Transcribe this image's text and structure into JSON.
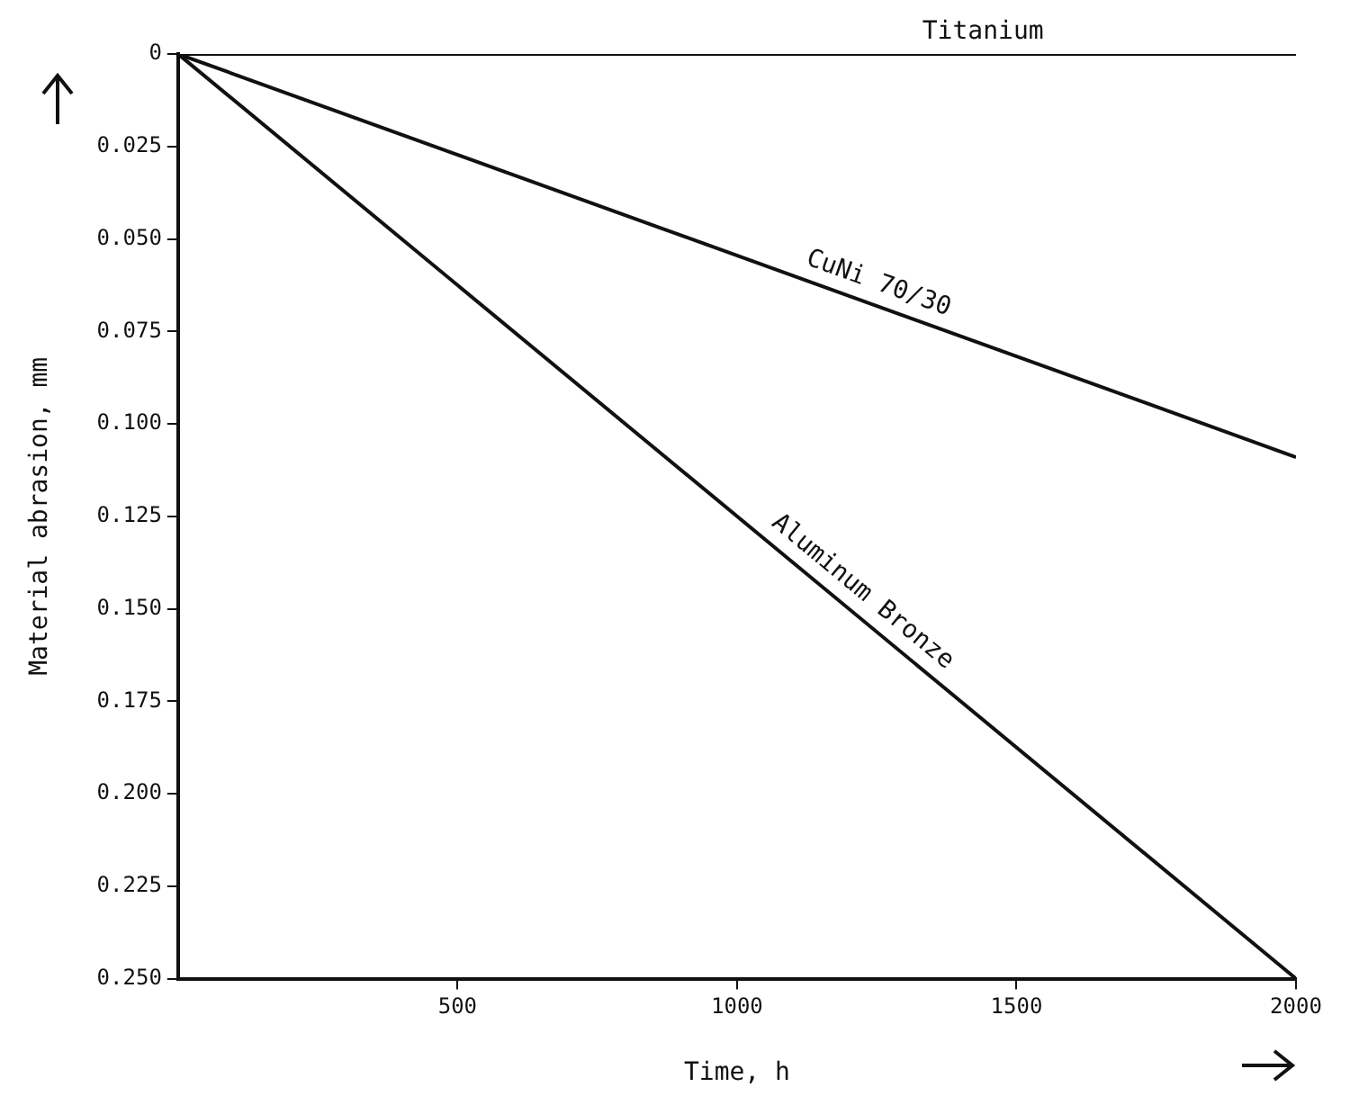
{
  "chart_data": {
    "type": "line",
    "xlabel": "Time, h",
    "ylabel": "Material abrasion, mm",
    "x": [
      0,
      2000
    ],
    "series": [
      {
        "name": "Titanium",
        "color": "#111111",
        "values": [
          0,
          0
        ]
      },
      {
        "name": "CuNi 70/30",
        "color": "#111111",
        "values": [
          0,
          0.109
        ]
      },
      {
        "name": "Aluminum Bronze",
        "color": "#111111",
        "values": [
          0,
          0.25
        ]
      }
    ],
    "xlim": [
      0,
      2000
    ],
    "xticks": [
      500,
      1000,
      1500,
      2000
    ],
    "ylim": [
      0.25,
      0
    ],
    "yticks": [
      0,
      0.025,
      {
        "value": 0.05,
        "label": "0.050"
      },
      0.075,
      {
        "value": 0.1,
        "label": "0.100"
      },
      0.125,
      {
        "value": 0.15,
        "label": "0.150"
      },
      0.175,
      {
        "value": 0.2,
        "label": "0.200"
      },
      0.225,
      {
        "value": 0.25,
        "label": "0.250"
      }
    ],
    "grid": false,
    "legend": false,
    "marker": "none",
    "line_style": "solid"
  }
}
